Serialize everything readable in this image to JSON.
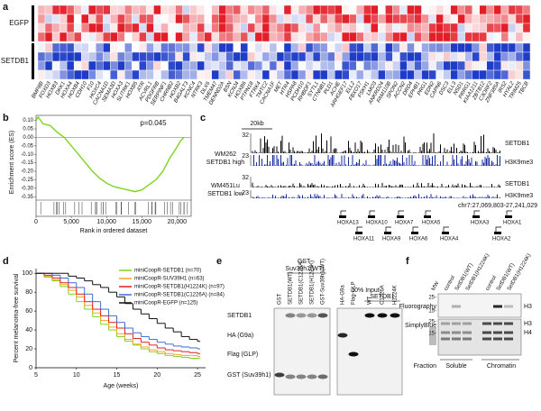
{
  "panel_labels": [
    "a",
    "b",
    "c",
    "d",
    "e",
    "f"
  ],
  "heatmap": {
    "row_groups": [
      "EGFP",
      "SETDB1"
    ],
    "genes": [
      "BMP8B",
      "FOXD3",
      "HOXB3",
      "DKK1",
      "HOXA4",
      "HOXB4",
      "CDH10",
      "F10",
      "HOXC4",
      "CACNA1D",
      "SEMA3D",
      "HOXA3",
      "SLITRK1",
      "HOXB5",
      "ATR",
      "ACVRL1",
      "PDGFRB",
      "SERPINF1",
      "CHRNB2",
      "HOXB2",
      "B4GALT3",
      "KCNC4",
      "NTRK3",
      "DLX6",
      "TMEM47",
      "DENND2A",
      "BSN",
      "KCNJ4",
      "HOXB6",
      "PTPN18",
      "FTRK4",
      "TMTC2",
      "CACNA1F",
      "MET",
      "HTR4",
      "HSPA8",
      "PCDH10",
      "RHBDF1",
      "SYTL1",
      "CTNNB1",
      "PLD1",
      "ACHE",
      "ARHGEF17",
      "ELL2",
      "FBXO17",
      "FSKH1",
      "LMO3",
      "ANKRD24",
      "FAM110B",
      "SPON2",
      "ACCN2",
      "DRD4",
      "EPHB1",
      "PRG1",
      "EDN2",
      "CAPN6",
      "DSC3",
      "ELL3",
      "NSD1",
      "PRRG1",
      "KIAA1211",
      "ZBTB12",
      "C3ORF2",
      "ZNF385A",
      "IRS2",
      "HYAL2",
      "TRIM25",
      "TBCB"
    ]
  },
  "tracks": {
    "scale": "20kb",
    "max_top": "32",
    "max_bottom": "23",
    "track_a": "SETDB1",
    "track_b": "H3K9me3",
    "sample_1": "WM262",
    "sample_1_note": "SETDB1 high",
    "sample_2": "WM451Lu",
    "sample_2_note": "SETDB1 low",
    "locus": "chr7:27,069,803-27,241,029",
    "genes_top": [
      "HOXA13",
      "HOXA10",
      "HOXA7",
      "HOXA5",
      "HOXA3",
      "HOXA1"
    ],
    "genes_bottom": [
      "HOXA11",
      "HOXA9",
      "HOXA6",
      "HOXA4",
      "HOXA2"
    ]
  },
  "blot_e": {
    "header_1": "GST-",
    "header_2": "Suv39h1(WT)",
    "lanes": [
      "GST",
      "SETDB1(WT)",
      "SETDB1(C1226A)",
      "SETDB1(H1224K)",
      "GST-Suv39h1(WT)"
    ],
    "input": "10% Input",
    "input_lanes": [
      "HA-G9a",
      "Flag-GLP"
    ],
    "input_group": "SETDB1",
    "input_group_lanes": [
      "WT",
      "C1226A",
      "H1224K"
    ],
    "rows": [
      "SETDB1",
      "HA (G9a)",
      "Flag (GLP)",
      "GST (Suv39h1)"
    ]
  },
  "blot_f": {
    "lanes": [
      "MW",
      "control",
      "SetDB1(WT)",
      "SetDB1(H1224K)",
      "control",
      "SetDB1(WT)",
      "SetDB1(H1224K)"
    ],
    "rows": [
      "Fluorography",
      "SimplyBlue",
      "Fraction"
    ],
    "fractions": [
      "Soluble",
      "Chromatin"
    ],
    "mw": [
      "25-",
      "15-",
      "25-",
      "15-"
    ],
    "bands": [
      "H3",
      "H3",
      "H4"
    ]
  },
  "chart_data": [
    {
      "type": "line",
      "annotation": "p=0.045",
      "ylabel": "Enrichment score (ES)",
      "xlabel": "Rank in ordered dataset",
      "color": "#7ed321",
      "x": [
        0,
        300,
        1000,
        2000,
        3000,
        4000,
        5000,
        6000,
        7000,
        8000,
        9000,
        10000,
        11000,
        12000,
        13000,
        14000,
        15000,
        16000,
        17000,
        18000,
        19000,
        19800,
        20500,
        21000
      ],
      "values": [
        0.1,
        0.12,
        0.08,
        0.07,
        0.03,
        0.0,
        -0.05,
        -0.1,
        -0.15,
        -0.2,
        -0.24,
        -0.27,
        -0.29,
        -0.3,
        -0.31,
        -0.32,
        -0.31,
        -0.28,
        -0.25,
        -0.2,
        -0.12,
        -0.07,
        -0.02,
        0.0
      ],
      "xlim": [
        0,
        22000
      ],
      "ylim": [
        -0.37,
        0.13
      ],
      "xticks": [
        0,
        {
          "value": 5000,
          "label": "5,000"
        },
        {
          "value": 10000,
          "label": "10,000"
        },
        {
          "value": 15000,
          "label": "15,000"
        },
        {
          "value": 20000,
          "label": "20,000"
        }
      ],
      "yticks": [
        {
          "value": 0.1,
          "label": "0.10"
        },
        {
          "value": 0.05,
          "label": "0.05"
        },
        {
          "value": 0,
          "label": "0.00"
        },
        {
          "value": -0.05,
          "label": "-0.05"
        },
        {
          "value": -0.1,
          "label": "-0.10"
        },
        {
          "value": -0.15,
          "label": "-0.15"
        },
        {
          "value": -0.2,
          "label": "-0.20"
        },
        {
          "value": -0.25,
          "label": "-0.25"
        },
        {
          "value": -0.3,
          "label": "-0.30"
        },
        {
          "value": -0.35,
          "label": "-0.35"
        }
      ]
    },
    {
      "type": "step",
      "ylabel": "Percent melanoma-free survival",
      "xlabel": "Age (weeks)",
      "x": [
        5,
        6,
        7,
        8,
        9,
        10,
        11,
        12,
        13,
        14,
        15,
        16,
        17,
        18,
        19,
        20,
        21,
        22,
        23,
        24,
        25
      ],
      "xlim": [
        5,
        26
      ],
      "ylim": [
        0,
        105
      ],
      "xticks": [
        5,
        10,
        15,
        20,
        25
      ],
      "yticks": [
        0,
        20,
        40,
        60,
        80,
        100
      ],
      "series": [
        {
          "name": "miniCoopR-SETDB1 (n=70)",
          "color": "#7ed321",
          "values": [
            100,
            96,
            92,
            86,
            78,
            70,
            62,
            54,
            46,
            40,
            33,
            28,
            24,
            20,
            17,
            15,
            13,
            12,
            11,
            10,
            10
          ]
        },
        {
          "name": "miniCoopR-SUV39H1 (n=63)",
          "color": "#f5a623",
          "values": [
            100,
            97,
            93,
            88,
            82,
            75,
            66,
            58,
            50,
            43,
            36,
            30,
            25,
            22,
            19,
            17,
            15,
            14,
            13,
            13,
            12
          ]
        },
        {
          "name": "miniCoopR-SETDB1(H1224K) (n=97)",
          "color": "#e02020",
          "values": [
            100,
            98,
            95,
            90,
            85,
            78,
            70,
            62,
            55,
            48,
            42,
            36,
            31,
            27,
            24,
            21,
            19,
            18,
            17,
            16,
            15
          ]
        },
        {
          "name": "miniCoopR-SETDB1(C1226A) (n=84)",
          "color": "#3a6fd8",
          "values": [
            100,
            100,
            98,
            95,
            90,
            85,
            78,
            70,
            62,
            55,
            48,
            42,
            37,
            33,
            30,
            27,
            25,
            23,
            22,
            21,
            20
          ]
        },
        {
          "name": "miniCoopR-EGFP (n=125)",
          "color": "#111111",
          "values": [
            100,
            100,
            100,
            100,
            97,
            95,
            92,
            88,
            85,
            80,
            75,
            68,
            62,
            57,
            52,
            47,
            42,
            38,
            33,
            30,
            28
          ]
        }
      ]
    }
  ]
}
